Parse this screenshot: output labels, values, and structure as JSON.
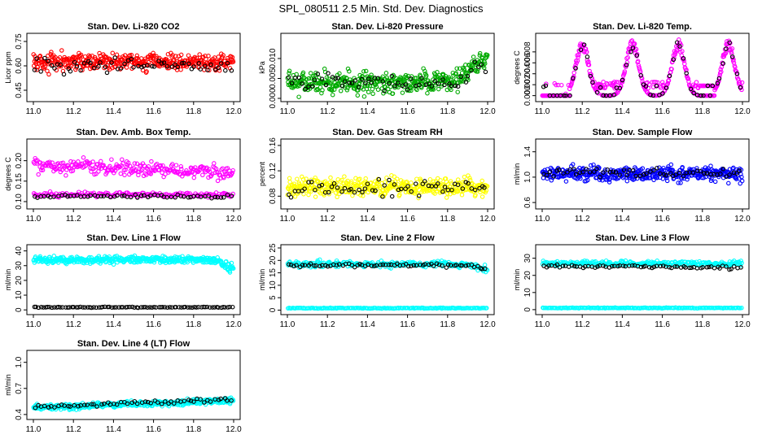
{
  "figure_title": "SPL_080511  2.5 Min. Std. Dev. Diagnostics",
  "chart_data": [
    {
      "type": "scatter",
      "title": "Stan. Dev. Li-820 CO2",
      "xlabel": "",
      "ylabel": "Licor ppm",
      "xlim": [
        11.0,
        12.0
      ],
      "ylim": [
        0.4,
        0.78
      ],
      "x_ticks": [
        "11.0",
        "11.2",
        "11.4",
        "11.6",
        "11.8",
        "12.0"
      ],
      "y_ticks": [
        "0.45",
        "0.60",
        "0.75"
      ],
      "y_tick_values": [
        0.45,
        0.6,
        0.75
      ],
      "series": [
        {
          "name": "primary",
          "color": "#ff0000",
          "n": 420,
          "center": 0.625,
          "spread": 0.05,
          "trend": 0.0
        },
        {
          "name": "reference",
          "color": "#000000",
          "n": 60,
          "center": 0.6,
          "spread": 0.04,
          "trend": 0.0
        }
      ]
    },
    {
      "type": "scatter",
      "title": "Stan. Dev. Li-820 Pressure",
      "xlabel": "",
      "ylabel": "kPa",
      "xlim": [
        11.0,
        12.0
      ],
      "ylim": [
        0.0,
        0.0155
      ],
      "x_ticks": [
        "11.0",
        "11.2",
        "11.4",
        "11.6",
        "11.8",
        "12.0"
      ],
      "y_ticks": [
        "0.000",
        "0.005",
        "0.010"
      ],
      "y_tick_values": [
        0.0,
        0.005,
        0.01
      ],
      "series": [
        {
          "name": "primary",
          "color": "#00aa00",
          "n": 420,
          "center": 0.004,
          "spread": 0.0025,
          "trend": 0.0,
          "end_rise": 0.007
        },
        {
          "name": "reference",
          "color": "#000000",
          "n": 60,
          "center": 0.004,
          "spread": 0.002,
          "trend": 0.0,
          "end_rise": 0.006
        }
      ]
    },
    {
      "type": "scatter",
      "title": "Stan. Dev. Li-820 Temp.",
      "xlabel": "",
      "ylabel": "degrees C",
      "xlim": [
        11.0,
        12.0
      ],
      "ylim": [
        -0.0005,
        0.0108
      ],
      "x_ticks": [
        "11.0",
        "11.2",
        "11.4",
        "11.6",
        "11.8",
        "12.0"
      ],
      "y_ticks": [
        "0.000",
        "0.002",
        "0.004",
        "0.006",
        "0.008"
      ],
      "y_tick_values": [
        0.0,
        0.002,
        0.004,
        0.006,
        0.008
      ],
      "peaks_x": [
        11.2,
        11.45,
        11.68,
        11.93
      ],
      "series": [
        {
          "name": "primary",
          "color": "#ff00ff",
          "n": 420,
          "pattern": "peaks",
          "peak": 0.0098
        },
        {
          "name": "reference",
          "color": "#000000",
          "n": 60,
          "pattern": "peaks",
          "peak": 0.0095
        }
      ]
    },
    {
      "type": "scatter",
      "title": "Stan. Dev. Amb. Box Temp.",
      "xlabel": "",
      "ylabel": "degrees C",
      "xlim": [
        11.0,
        12.0
      ],
      "ylim": [
        0.09,
        0.245
      ],
      "x_ticks": [
        "11.0",
        "11.2",
        "11.4",
        "11.6",
        "11.8",
        "12.0"
      ],
      "y_ticks": [
        "0.10",
        "0.15",
        "0.20"
      ],
      "y_tick_values": [
        0.1,
        0.15,
        0.2
      ],
      "series": [
        {
          "name": "primary-upper",
          "color": "#ff00ff",
          "n": 260,
          "center": 0.19,
          "spread": 0.018,
          "trend": -0.02
        },
        {
          "name": "primary-lower",
          "color": "#ff00ff",
          "n": 160,
          "center": 0.117,
          "spread": 0.006,
          "trend": 0.0
        },
        {
          "name": "reference",
          "color": "#000000",
          "n": 60,
          "center": 0.113,
          "spread": 0.004,
          "trend": 0.0
        }
      ]
    },
    {
      "type": "scatter",
      "title": "Stan. Dev. Gas Stream RH",
      "xlabel": "",
      "ylabel": "percent",
      "xlim": [
        11.0,
        12.0
      ],
      "ylim": [
        0.065,
        0.165
      ],
      "x_ticks": [
        "11.0",
        "11.2",
        "11.4",
        "11.6",
        "11.8",
        "12.0"
      ],
      "y_ticks": [
        "0.08",
        "0.12",
        "0.16"
      ],
      "y_tick_values": [
        0.08,
        0.12,
        0.16
      ],
      "series": [
        {
          "name": "primary",
          "color": "#ffff00",
          "n": 420,
          "center": 0.095,
          "spread": 0.013,
          "trend": 0.0
        },
        {
          "name": "reference",
          "color": "#000000",
          "n": 60,
          "center": 0.092,
          "spread": 0.012,
          "trend": 0.0
        }
      ]
    },
    {
      "type": "scatter",
      "title": "Stan. Dev. Sample Flow",
      "xlabel": "",
      "ylabel": "ml/min",
      "xlim": [
        11.0,
        12.0
      ],
      "ylim": [
        0.55,
        1.55
      ],
      "x_ticks": [
        "11.0",
        "11.2",
        "11.4",
        "11.6",
        "11.8",
        "12.0"
      ],
      "y_ticks": [
        "0.6",
        "1.0",
        "1.4"
      ],
      "y_tick_values": [
        0.6,
        1.0,
        1.4
      ],
      "series": [
        {
          "name": "primary",
          "color": "#0000ff",
          "n": 420,
          "center": 1.05,
          "spread": 0.11,
          "trend": 0.0
        },
        {
          "name": "reference",
          "color": "#000000",
          "n": 60,
          "center": 1.07,
          "spread": 0.06,
          "trend": 0.0
        }
      ]
    },
    {
      "type": "scatter",
      "title": "Stan. Dev. Line 1 Flow",
      "xlabel": "",
      "ylabel": "ml/min",
      "xlim": [
        11.0,
        12.0
      ],
      "ylim": [
        -1,
        42
      ],
      "x_ticks": [
        "11.0",
        "11.2",
        "11.4",
        "11.6",
        "11.8",
        "12.0"
      ],
      "y_ticks": [
        "0",
        "10",
        "20",
        "30",
        "40"
      ],
      "y_tick_values": [
        0,
        10,
        20,
        30,
        40
      ],
      "series": [
        {
          "name": "primary",
          "color": "#00ffff",
          "n": 420,
          "center": 34,
          "spread": 2.2,
          "trend": 0.0,
          "end_drop": 8
        },
        {
          "name": "reference",
          "color": "#000000",
          "n": 90,
          "center": 1.8,
          "spread": 0.3,
          "trend": 0.0
        }
      ]
    },
    {
      "type": "scatter",
      "title": "Stan. Dev. Line 2 Flow",
      "xlabel": "",
      "ylabel": "ml/min",
      "xlim": [
        11.0,
        12.0
      ],
      "ylim": [
        -0.5,
        25
      ],
      "x_ticks": [
        "11.0",
        "11.2",
        "11.4",
        "11.6",
        "11.8",
        "12.0"
      ],
      "y_ticks": [
        "0",
        "5",
        "10",
        "15",
        "20",
        "25"
      ],
      "y_tick_values": [
        0,
        5,
        10,
        15,
        20,
        25
      ],
      "series": [
        {
          "name": "primary-upper",
          "color": "#00ffff",
          "n": 260,
          "center": 18.5,
          "spread": 1.2,
          "trend": 0.0,
          "end_drop": 3
        },
        {
          "name": "primary-lower",
          "color": "#00ffff",
          "n": 160,
          "center": 0.8,
          "spread": 0.15,
          "trend": 0.0
        },
        {
          "name": "reference",
          "color": "#000000",
          "n": 70,
          "center": 18.0,
          "spread": 0.7,
          "trend": 0.0,
          "end_drop": 2
        }
      ]
    },
    {
      "type": "scatter",
      "title": "Stan. Dev. Line 3 Flow",
      "xlabel": "",
      "ylabel": "ml/min",
      "xlim": [
        11.0,
        12.0
      ],
      "ylim": [
        -1,
        36
      ],
      "x_ticks": [
        "11.0",
        "11.2",
        "11.4",
        "11.6",
        "11.8",
        "12.0"
      ],
      "y_ticks": [
        "0",
        "10",
        "20",
        "30"
      ],
      "y_tick_values": [
        0,
        10,
        20,
        30
      ],
      "series": [
        {
          "name": "primary-upper",
          "color": "#00ffff",
          "n": 260,
          "center": 27,
          "spread": 1.4,
          "trend": 0.0
        },
        {
          "name": "primary-lower",
          "color": "#00ffff",
          "n": 160,
          "center": 1.0,
          "spread": 0.2,
          "trend": 0.0
        },
        {
          "name": "reference",
          "color": "#000000",
          "n": 70,
          "center": 25.5,
          "spread": 0.8,
          "trend": -1.0
        }
      ]
    },
    {
      "type": "scatter",
      "title": "Stan. Dev. Line 4 (LT) Flow",
      "xlabel": "",
      "ylabel": "ml/min",
      "xlim": [
        11.0,
        12.0
      ],
      "ylim": [
        0.38,
        1.1
      ],
      "x_ticks": [
        "11.0",
        "11.2",
        "11.4",
        "11.6",
        "11.8",
        "12.0"
      ],
      "y_ticks": [
        "0.4",
        "0.7",
        "1.0"
      ],
      "y_tick_values": [
        0.4,
        0.7,
        1.0
      ],
      "series": [
        {
          "name": "primary",
          "color": "#00ffff",
          "n": 420,
          "center": 0.48,
          "spread": 0.03,
          "trend": 0.08
        },
        {
          "name": "reference",
          "color": "#000000",
          "n": 60,
          "center": 0.49,
          "spread": 0.025,
          "trend": 0.08
        }
      ]
    }
  ]
}
